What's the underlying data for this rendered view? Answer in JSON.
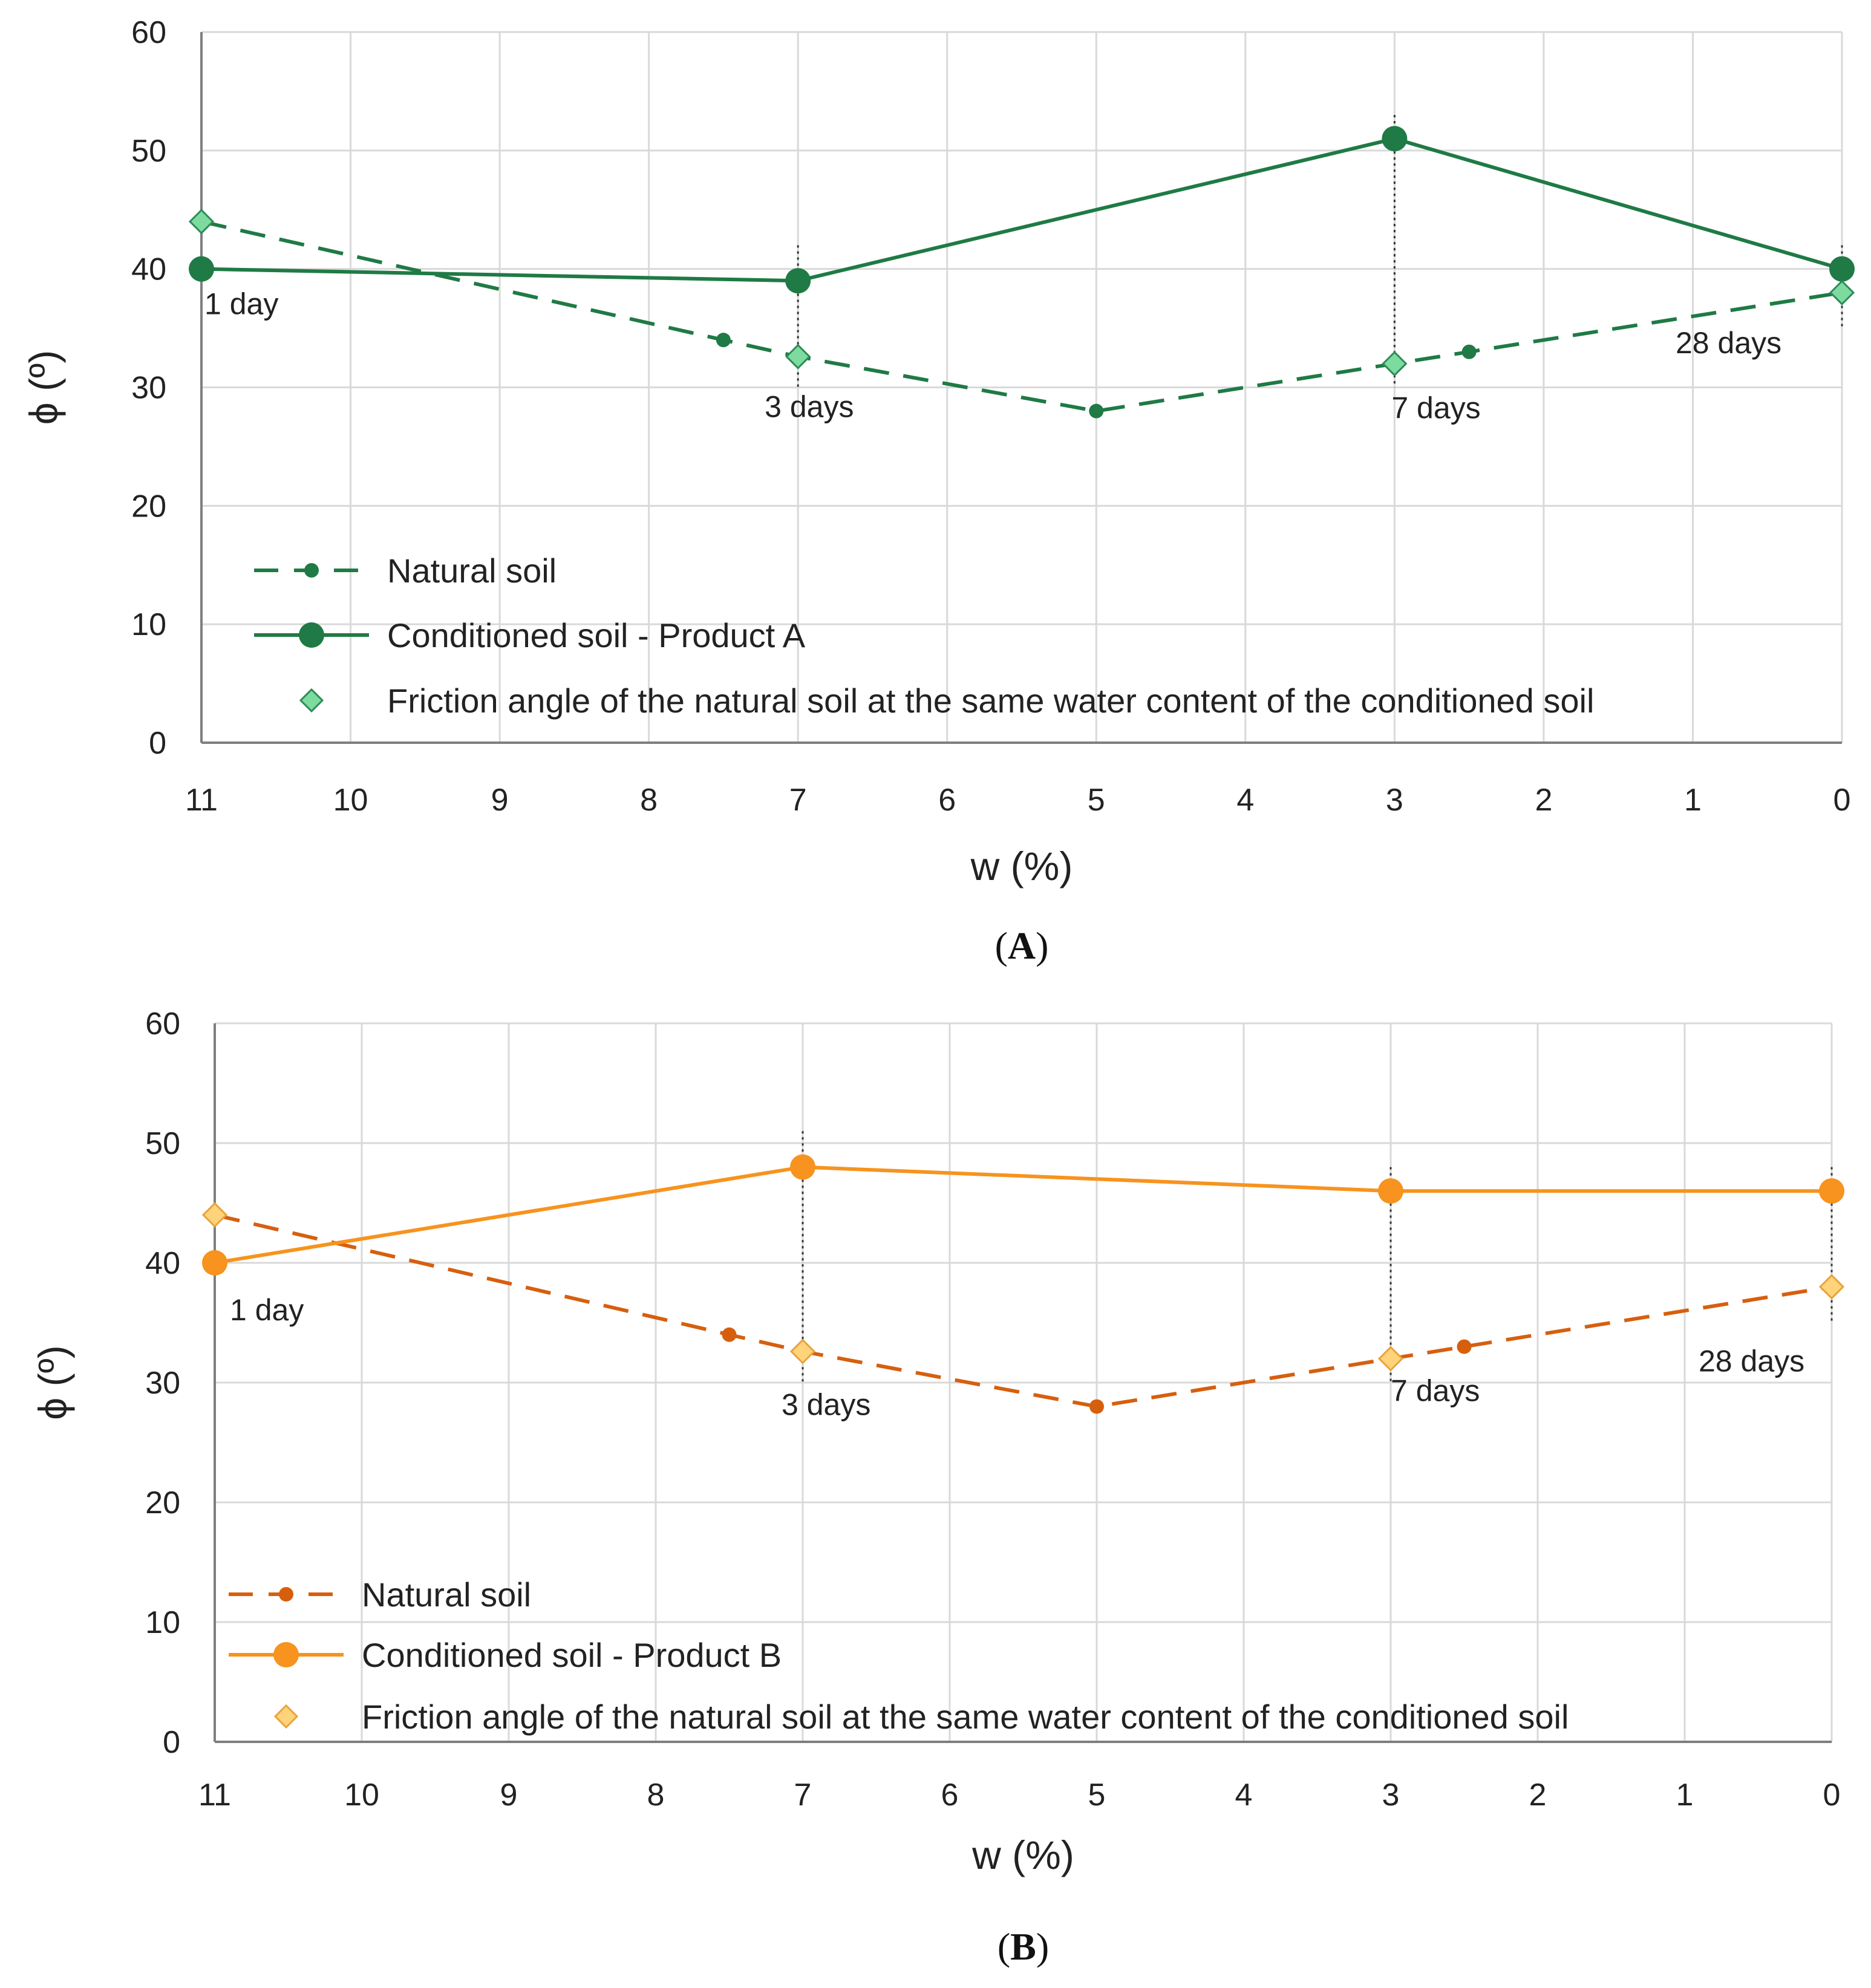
{
  "chart_data": [
    {
      "type": "line",
      "panel": "A",
      "panel_label_open": "(",
      "panel_label_letter": "A",
      "panel_label_close": ")",
      "xlabel": "w (%)",
      "ylabel": "ϕ (º)",
      "x_reversed": true,
      "xlim": [
        11,
        0
      ],
      "ylim": [
        0,
        60
      ],
      "xticks": [
        "11",
        "10",
        "9",
        "8",
        "7",
        "6",
        "5",
        "4",
        "3",
        "2",
        "1",
        "0"
      ],
      "yticks": [
        "0",
        "10",
        "20",
        "30",
        "40",
        "50",
        "60"
      ],
      "grid": true,
      "colors": {
        "natural": "#1f7a45",
        "conditioned": "#1f7a45",
        "friction": "#7ddba0",
        "friction_stroke": "#2e8b57"
      },
      "series": [
        {
          "key": "natural",
          "name": "Natural soil",
          "style": "dashed-small-dot",
          "x": [
            11,
            7.5,
            7,
            5,
            3,
            2.5,
            0
          ],
          "y": [
            44,
            34,
            32.6,
            28,
            32,
            33,
            38
          ],
          "markers": [
            7.5,
            5,
            2.5
          ]
        },
        {
          "key": "conditioned",
          "name": "Conditioned soil - Product A",
          "style": "solid-large-dot",
          "x": [
            11,
            7,
            3,
            0
          ],
          "y": [
            40,
            39,
            51,
            40
          ]
        },
        {
          "key": "friction",
          "name": "Friction angle of the natural soil at the same water content of the conditioned soil",
          "style": "diamond",
          "x": [
            11,
            7,
            3,
            0
          ],
          "y": [
            44,
            32.6,
            32,
            38
          ]
        }
      ],
      "annotations": [
        {
          "text": "1 day",
          "x": 11,
          "y": 40
        },
        {
          "text": "3 days",
          "x": 7,
          "y": 32.6
        },
        {
          "text": "7 days",
          "x": 3,
          "y": 32
        },
        {
          "text": "28 days",
          "x": 0,
          "y": 38
        }
      ],
      "droplines": [
        {
          "x": 7,
          "y_from": 30,
          "y_to": 42
        },
        {
          "x": 3,
          "y_from": 30,
          "y_to": 53
        },
        {
          "x": 0,
          "y_from": 35,
          "y_to": 42
        }
      ],
      "legend_position": "bottom-left"
    },
    {
      "type": "line",
      "panel": "B",
      "panel_label_open": "(",
      "panel_label_letter": "B",
      "panel_label_close": ")",
      "xlabel": "w (%)",
      "ylabel": "ϕ (º)",
      "x_reversed": true,
      "xlim": [
        11,
        0
      ],
      "ylim": [
        0,
        60
      ],
      "xticks": [
        "11",
        "10",
        "9",
        "8",
        "7",
        "6",
        "5",
        "4",
        "3",
        "2",
        "1",
        "0"
      ],
      "yticks": [
        "0",
        "10",
        "20",
        "30",
        "40",
        "50",
        "60"
      ],
      "grid": true,
      "colors": {
        "natural": "#d65f0e",
        "conditioned": "#f7931e",
        "friction": "#ffd37a",
        "friction_stroke": "#e8a33c"
      },
      "series": [
        {
          "key": "natural",
          "name": "Natural soil",
          "style": "dashed-small-dot",
          "x": [
            11,
            7.5,
            7,
            5,
            3,
            2.5,
            0
          ],
          "y": [
            44,
            34,
            32.6,
            28,
            32,
            33,
            38
          ],
          "markers": [
            7.5,
            5,
            2.5
          ]
        },
        {
          "key": "conditioned",
          "name": "Conditioned soil - Product B",
          "style": "solid-large-dot",
          "x": [
            11,
            7,
            3,
            0
          ],
          "y": [
            40,
            48,
            46,
            46
          ]
        },
        {
          "key": "friction",
          "name": "Friction angle of the natural soil at the same water content of the conditioned soil",
          "style": "diamond",
          "x": [
            11,
            7,
            3,
            0
          ],
          "y": [
            44,
            32.6,
            32,
            38
          ]
        }
      ],
      "annotations": [
        {
          "text": "1 day",
          "x": 11,
          "y": 40
        },
        {
          "text": "3 days",
          "x": 7,
          "y": 32.6
        },
        {
          "text": "7 days",
          "x": 3,
          "y": 32
        },
        {
          "text": "28 days",
          "x": 0,
          "y": 38
        }
      ],
      "droplines": [
        {
          "x": 7,
          "y_from": 30,
          "y_to": 51
        },
        {
          "x": 3,
          "y_from": 30,
          "y_to": 48
        },
        {
          "x": 0,
          "y_from": 35,
          "y_to": 48
        }
      ],
      "legend_position": "bottom-left"
    }
  ]
}
